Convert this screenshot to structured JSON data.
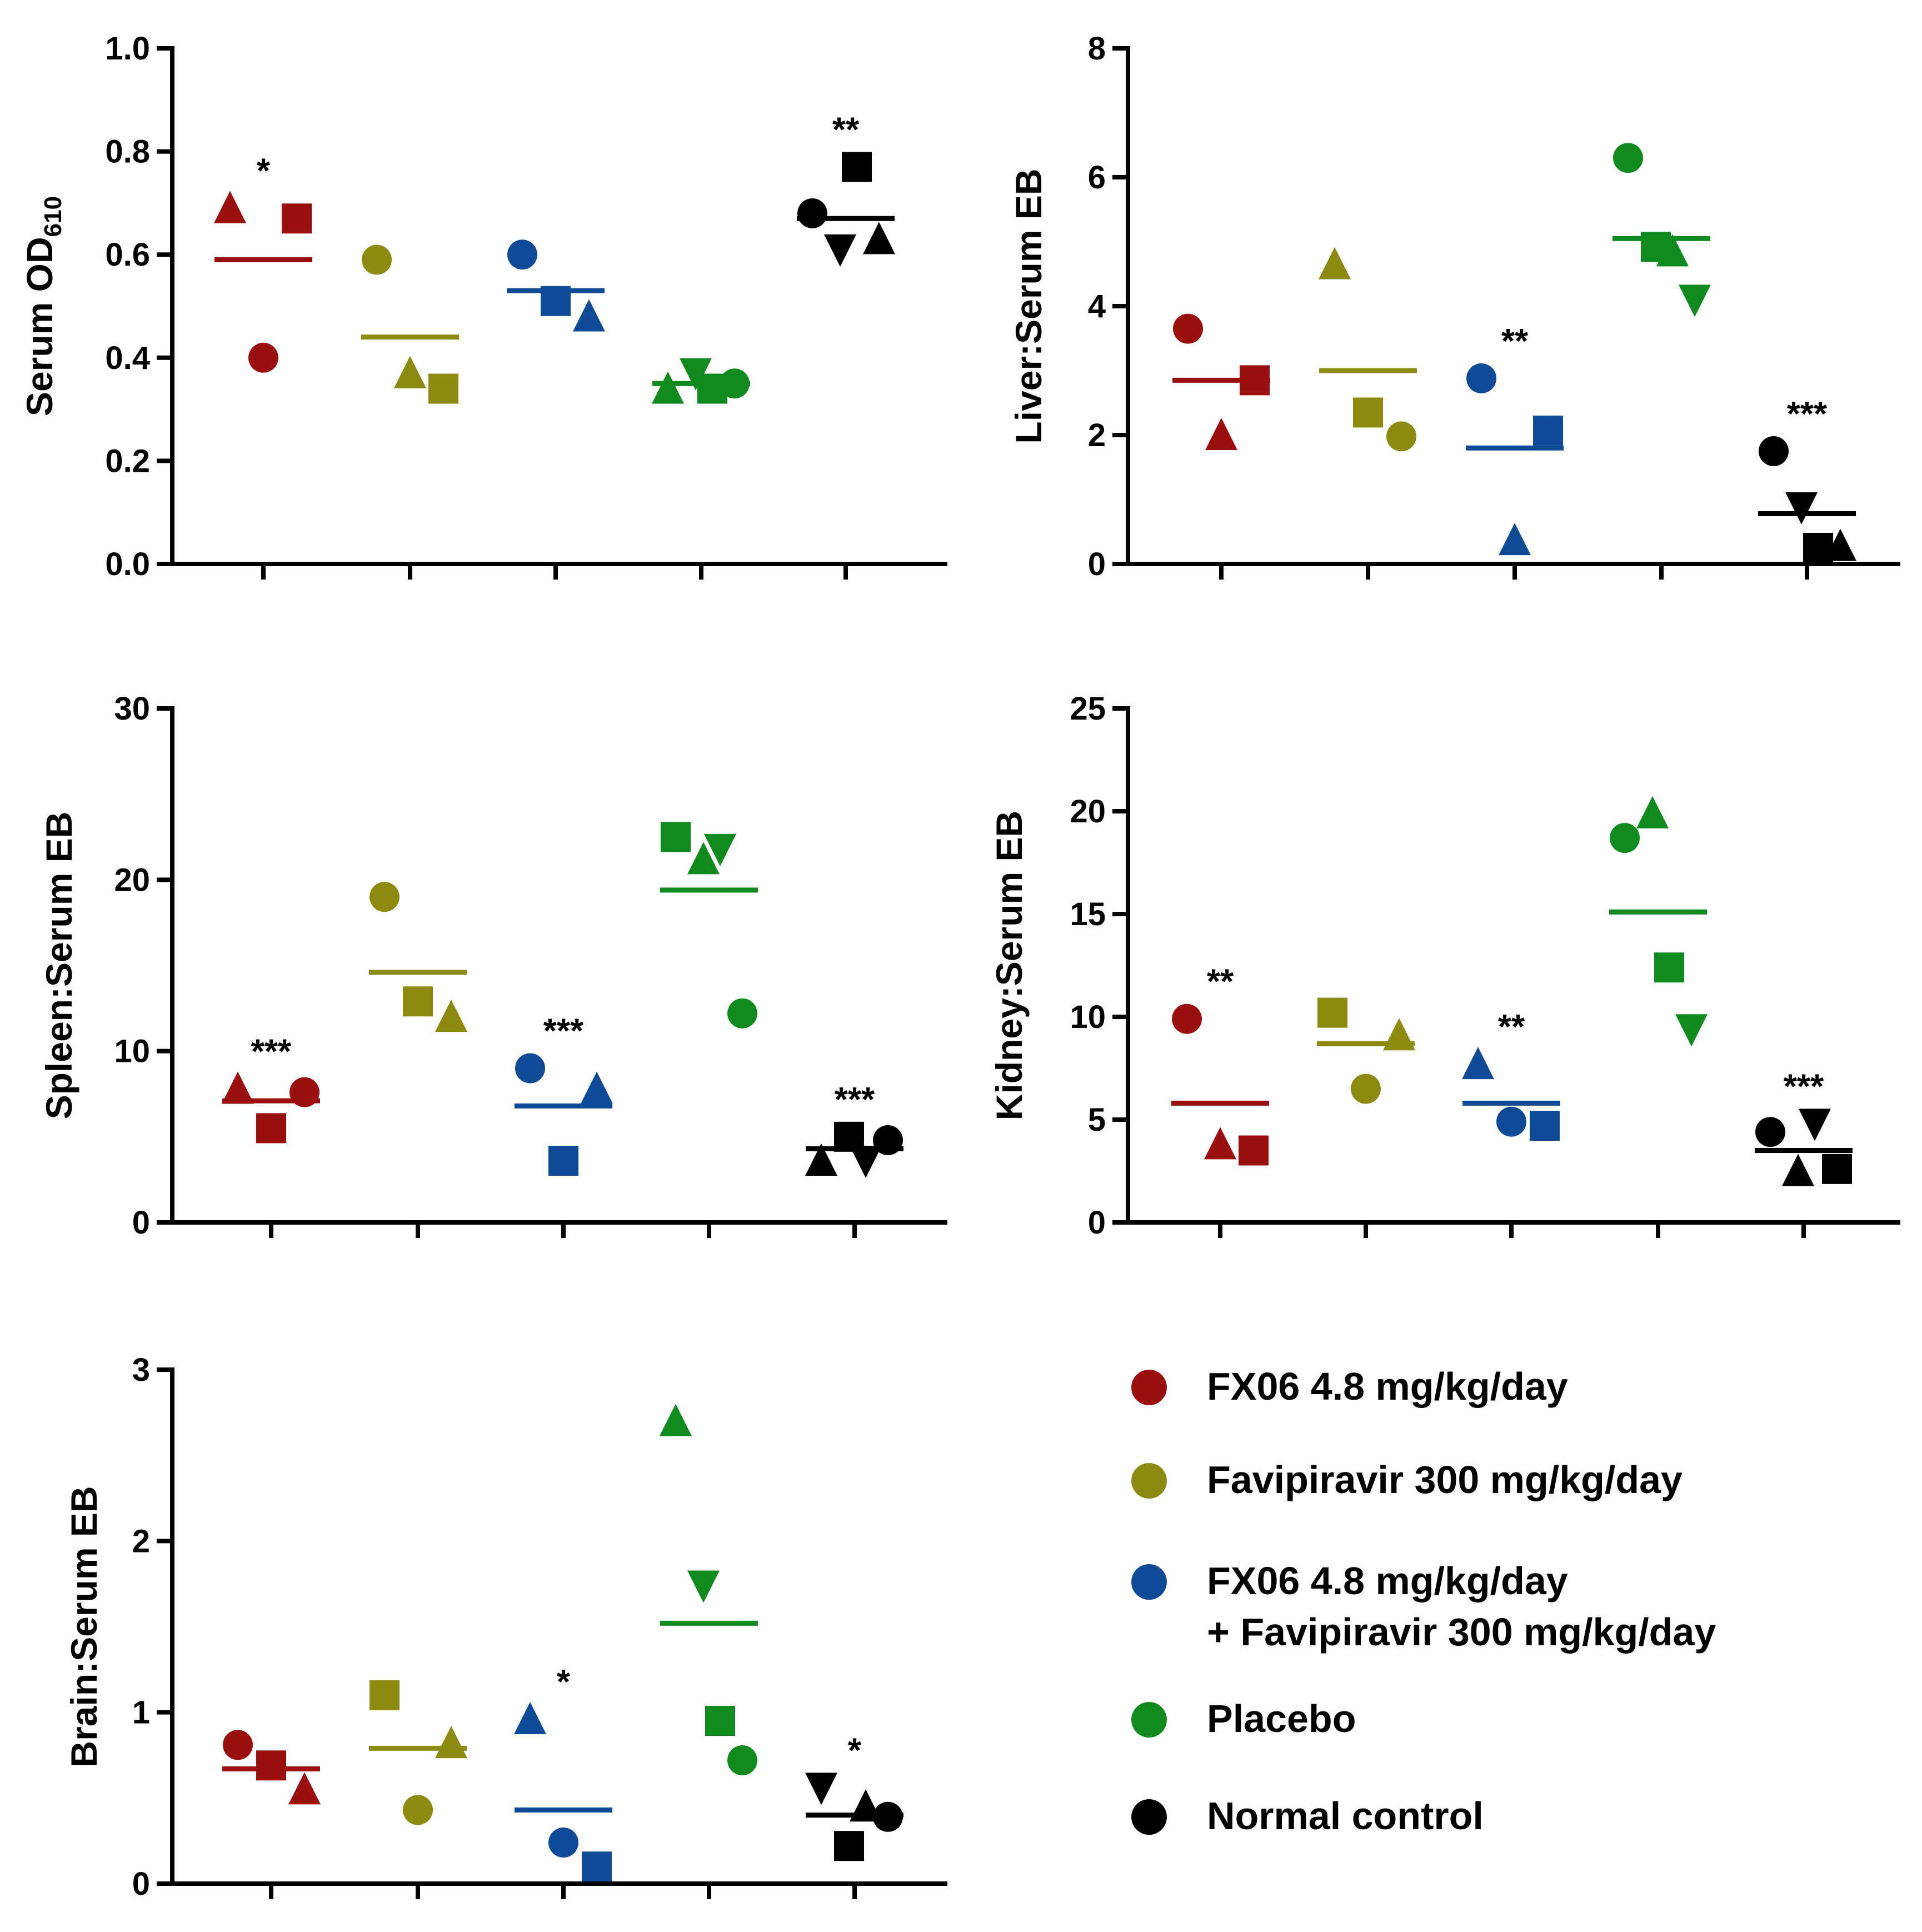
{
  "colors": {
    "FX06 4.8 mg/kg/day": "#9c0f0f",
    "Favipiravir 300 mg/kg/day": "#8c8a10",
    "FX06 + Favipiravir": "#0f4a96",
    "Placebo": "#0f8a1f",
    "Normal control": "#000000"
  },
  "legend": {
    "items": [
      {
        "lines": [
          "FX06 4.8 mg/kg/day"
        ],
        "color_key": "FX06 4.8 mg/kg/day"
      },
      {
        "lines": [
          "Favipiravir 300 mg/kg/day"
        ],
        "color_key": "Favipiravir 300 mg/kg/day"
      },
      {
        "lines": [
          "FX06 4.8 mg/kg/day",
          "+ Favipiravir 300 mg/kg/day"
        ],
        "color_key": "FX06 + Favipiravir"
      },
      {
        "lines": [
          "Placebo"
        ],
        "color_key": "Placebo"
      },
      {
        "lines": [
          "Normal control"
        ],
        "color_key": "Normal control"
      }
    ]
  },
  "chart_data": [
    {
      "type": "scatter",
      "id": "serum",
      "ylabel": "Serum OD",
      "ylabel_sub": "610",
      "ylim": [
        0,
        1.0
      ],
      "yticks": [
        0.0,
        0.2,
        0.4,
        0.6,
        0.8,
        1.0
      ],
      "ytick_labels": [
        "0.0",
        "0.2",
        "0.4",
        "0.6",
        "0.8",
        "1.0"
      ],
      "groups": [
        {
          "color_key": "FX06 4.8 mg/kg/day",
          "mean": 0.59,
          "sig": "*",
          "points": [
            {
              "shape": "triangle-up",
              "value": 0.69
            },
            {
              "shape": "square",
              "value": 0.67
            },
            {
              "shape": "circle",
              "value": 0.4
            }
          ]
        },
        {
          "color_key": "Favipiravir 300 mg/kg/day",
          "mean": 0.44,
          "sig": "",
          "points": [
            {
              "shape": "circle",
              "value": 0.59
            },
            {
              "shape": "square",
              "value": 0.34
            },
            {
              "shape": "triangle-up",
              "value": 0.37
            }
          ]
        },
        {
          "color_key": "FX06 + Favipiravir",
          "mean": 0.53,
          "sig": "",
          "points": [
            {
              "shape": "circle",
              "value": 0.6
            },
            {
              "shape": "triangle-up",
              "value": 0.48
            },
            {
              "shape": "square",
              "value": 0.51
            }
          ]
        },
        {
          "color_key": "Placebo",
          "mean": 0.35,
          "sig": "",
          "points": [
            {
              "shape": "triangle-up",
              "value": 0.34
            },
            {
              "shape": "triangle-down",
              "value": 0.37
            },
            {
              "shape": "square",
              "value": 0.34
            },
            {
              "shape": "circle",
              "value": 0.35
            }
          ]
        },
        {
          "color_key": "Normal control",
          "mean": 0.67,
          "sig": "**",
          "points": [
            {
              "shape": "circle",
              "value": 0.68
            },
            {
              "shape": "triangle-down",
              "value": 0.61
            },
            {
              "shape": "square",
              "value": 0.77
            },
            {
              "shape": "triangle-up",
              "value": 0.63
            }
          ]
        }
      ]
    },
    {
      "type": "scatter",
      "id": "liver",
      "ylabel": "Liver:Serum EB",
      "ylabel_sub": "",
      "ylim": [
        0,
        8
      ],
      "yticks": [
        0,
        2,
        4,
        6,
        8
      ],
      "ytick_labels": [
        "0",
        "2",
        "4",
        "6",
        "8"
      ],
      "groups": [
        {
          "color_key": "FX06 4.8 mg/kg/day",
          "mean": 2.85,
          "sig": "",
          "points": [
            {
              "shape": "circle",
              "value": 3.65
            },
            {
              "shape": "square",
              "value": 2.85
            },
            {
              "shape": "triangle-up",
              "value": 2.0
            }
          ]
        },
        {
          "color_key": "Favipiravir 300 mg/kg/day",
          "mean": 3.0,
          "sig": "",
          "points": [
            {
              "shape": "triangle-up",
              "value": 4.65
            },
            {
              "shape": "circle",
              "value": 1.98
            },
            {
              "shape": "square",
              "value": 2.35
            }
          ]
        },
        {
          "color_key": "FX06 + Favipiravir",
          "mean": 1.8,
          "sig": "**",
          "points": [
            {
              "shape": "circle",
              "value": 2.88
            },
            {
              "shape": "square",
              "value": 2.07
            },
            {
              "shape": "triangle-up",
              "value": 0.37
            }
          ]
        },
        {
          "color_key": "Placebo",
          "mean": 5.05,
          "sig": "",
          "points": [
            {
              "shape": "circle",
              "value": 6.3
            },
            {
              "shape": "square",
              "value": 4.92
            },
            {
              "shape": "triangle-up",
              "value": 4.85
            },
            {
              "shape": "triangle-down",
              "value": 4.1
            }
          ]
        },
        {
          "color_key": "Normal control",
          "mean": 0.78,
          "sig": "***",
          "points": [
            {
              "shape": "circle",
              "value": 1.75
            },
            {
              "shape": "triangle-down",
              "value": 0.88
            },
            {
              "shape": "square",
              "value": 0.25
            },
            {
              "shape": "triangle-up",
              "value": 0.28
            }
          ]
        }
      ]
    },
    {
      "type": "scatter",
      "id": "spleen",
      "ylabel": "Spleen:Serum EB",
      "ylabel_sub": "",
      "ylim": [
        0,
        30
      ],
      "yticks": [
        0,
        10,
        20,
        30
      ],
      "ytick_labels": [
        "0",
        "10",
        "20",
        "30"
      ],
      "groups": [
        {
          "color_key": "FX06 4.8 mg/kg/day",
          "mean": 7.1,
          "sig": "***",
          "points": [
            {
              "shape": "triangle-up",
              "value": 7.8
            },
            {
              "shape": "circle",
              "value": 7.6
            },
            {
              "shape": "square",
              "value": 5.5
            }
          ]
        },
        {
          "color_key": "Favipiravir 300 mg/kg/day",
          "mean": 14.6,
          "sig": "",
          "points": [
            {
              "shape": "circle",
              "value": 19.0
            },
            {
              "shape": "triangle-up",
              "value": 12.0
            },
            {
              "shape": "square",
              "value": 12.9
            }
          ]
        },
        {
          "color_key": "FX06 + Favipiravir",
          "mean": 6.8,
          "sig": "***",
          "points": [
            {
              "shape": "circle",
              "value": 9.0
            },
            {
              "shape": "triangle-up",
              "value": 7.8
            },
            {
              "shape": "square",
              "value": 3.6
            }
          ]
        },
        {
          "color_key": "Placebo",
          "mean": 19.4,
          "sig": "",
          "points": [
            {
              "shape": "square",
              "value": 22.5
            },
            {
              "shape": "triangle-up",
              "value": 21.2
            },
            {
              "shape": "triangle-down",
              "value": 21.8
            },
            {
              "shape": "circle",
              "value": 12.2
            }
          ]
        },
        {
          "color_key": "Normal control",
          "mean": 4.3,
          "sig": "***",
          "points": [
            {
              "shape": "triangle-up",
              "value": 3.6
            },
            {
              "shape": "square",
              "value": 5.0
            },
            {
              "shape": "triangle-down",
              "value": 3.6
            },
            {
              "shape": "circle",
              "value": 4.8
            }
          ]
        }
      ]
    },
    {
      "type": "scatter",
      "id": "kidney",
      "ylabel": "Kidney:Serum EB",
      "ylabel_sub": "",
      "ylim": [
        0,
        25
      ],
      "yticks": [
        0,
        5,
        10,
        15,
        20,
        25
      ],
      "ytick_labels": [
        "0",
        "5",
        "10",
        "15",
        "20",
        "25"
      ],
      "groups": [
        {
          "color_key": "FX06 4.8 mg/kg/day",
          "mean": 5.8,
          "sig": "**",
          "points": [
            {
              "shape": "circle",
              "value": 9.9
            },
            {
              "shape": "square",
              "value": 3.5
            },
            {
              "shape": "triangle-up",
              "value": 3.8
            }
          ]
        },
        {
          "color_key": "Favipiravir 300 mg/kg/day",
          "mean": 8.7,
          "sig": "",
          "points": [
            {
              "shape": "square",
              "value": 10.2
            },
            {
              "shape": "triangle-up",
              "value": 9.1
            },
            {
              "shape": "circle",
              "value": 6.5
            }
          ]
        },
        {
          "color_key": "FX06 + Favipiravir",
          "mean": 5.8,
          "sig": "**",
          "points": [
            {
              "shape": "triangle-up",
              "value": 7.7
            },
            {
              "shape": "square",
              "value": 4.7
            },
            {
              "shape": "circle",
              "value": 4.9
            }
          ]
        },
        {
          "color_key": "Placebo",
          "mean": 15.1,
          "sig": "",
          "points": [
            {
              "shape": "circle",
              "value": 18.7
            },
            {
              "shape": "triangle-up",
              "value": 19.9
            },
            {
              "shape": "square",
              "value": 12.4
            },
            {
              "shape": "triangle-down",
              "value": 9.4
            }
          ]
        },
        {
          "color_key": "Normal control",
          "mean": 3.5,
          "sig": "***",
          "points": [
            {
              "shape": "circle",
              "value": 4.4
            },
            {
              "shape": "triangle-up",
              "value": 2.5
            },
            {
              "shape": "triangle-down",
              "value": 4.8
            },
            {
              "shape": "square",
              "value": 2.6
            }
          ]
        }
      ]
    },
    {
      "type": "scatter",
      "id": "brain",
      "ylabel": "Brain:Serum EB",
      "ylabel_sub": "",
      "ylim": [
        0,
        3
      ],
      "yticks": [
        0,
        1,
        2,
        3
      ],
      "ytick_labels": [
        "0",
        "1",
        "2",
        "3"
      ],
      "groups": [
        {
          "color_key": "FX06 4.8 mg/kg/day",
          "mean": 0.67,
          "sig": "",
          "points": [
            {
              "shape": "circle",
              "value": 0.81
            },
            {
              "shape": "triangle-up",
              "value": 0.55
            },
            {
              "shape": "square",
              "value": 0.69
            }
          ]
        },
        {
          "color_key": "Favipiravir 300 mg/kg/day",
          "mean": 0.79,
          "sig": "",
          "points": [
            {
              "shape": "square",
              "value": 1.1
            },
            {
              "shape": "triangle-up",
              "value": 0.82
            },
            {
              "shape": "circle",
              "value": 0.43
            }
          ]
        },
        {
          "color_key": "FX06 + Favipiravir",
          "mean": 0.43,
          "sig": "*",
          "points": [
            {
              "shape": "triangle-up",
              "value": 0.96
            },
            {
              "shape": "square",
              "value": 0.1
            },
            {
              "shape": "circle",
              "value": 0.24
            }
          ]
        },
        {
          "color_key": "Placebo",
          "mean": 1.52,
          "sig": "",
          "points": [
            {
              "shape": "triangle-up",
              "value": 2.7
            },
            {
              "shape": "triangle-down",
              "value": 1.74
            },
            {
              "shape": "square",
              "value": 0.95
            },
            {
              "shape": "circle",
              "value": 0.72
            }
          ]
        },
        {
          "color_key": "Normal control",
          "mean": 0.4,
          "sig": "*",
          "points": [
            {
              "shape": "triangle-down",
              "value": 0.56
            },
            {
              "shape": "square",
              "value": 0.22
            },
            {
              "shape": "triangle-up",
              "value": 0.45
            },
            {
              "shape": "circle",
              "value": 0.39
            }
          ]
        }
      ]
    }
  ]
}
